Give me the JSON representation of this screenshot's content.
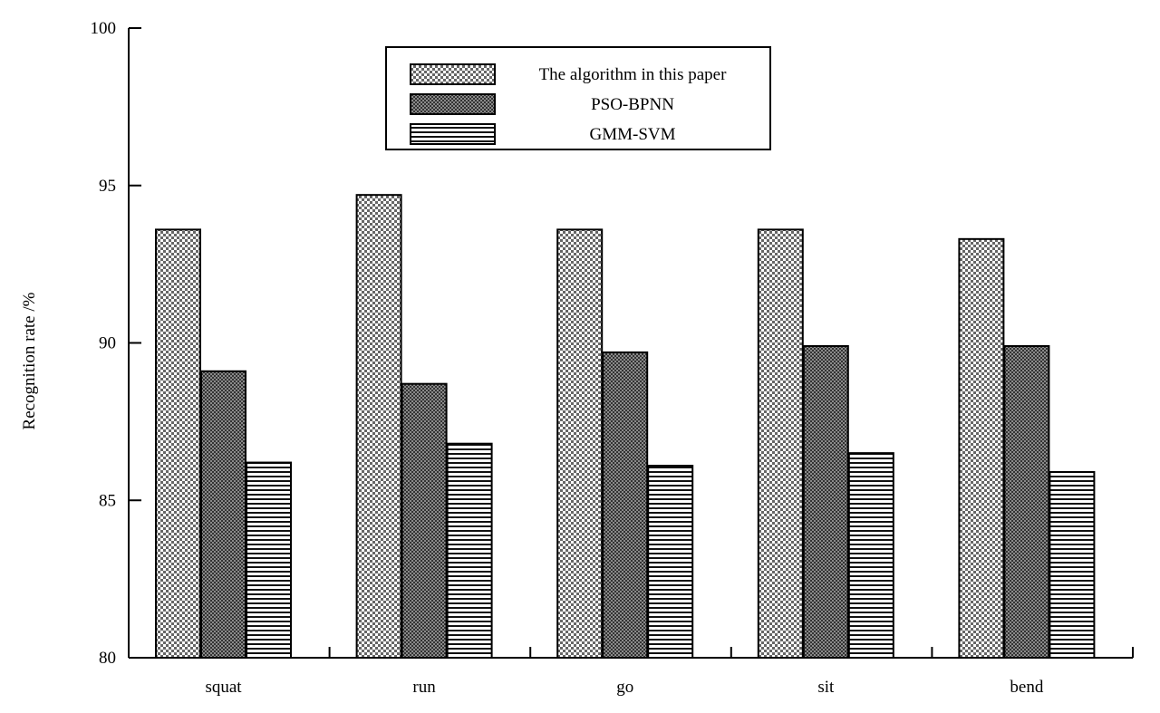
{
  "chart_data": {
    "type": "bar",
    "title": "",
    "xlabel": "",
    "ylabel": "Recognition rate /%",
    "ylim": [
      80,
      100
    ],
    "yticks": [
      80,
      85,
      90,
      95,
      100
    ],
    "categories": [
      "squat",
      "run",
      "go",
      "sit",
      "bend"
    ],
    "series": [
      {
        "name": "The algorithm in this paper",
        "values": [
          93.6,
          94.7,
          93.6,
          93.6,
          93.3
        ],
        "pattern": "checker"
      },
      {
        "name": "PSO-BPNN",
        "values": [
          89.1,
          88.7,
          89.7,
          89.9,
          89.9
        ],
        "pattern": "dots"
      },
      {
        "name": "GMM-SVM",
        "values": [
          86.2,
          86.8,
          86.1,
          86.5,
          85.9
        ],
        "pattern": "hlines"
      }
    ],
    "legend": "top-center",
    "grid": false
  }
}
